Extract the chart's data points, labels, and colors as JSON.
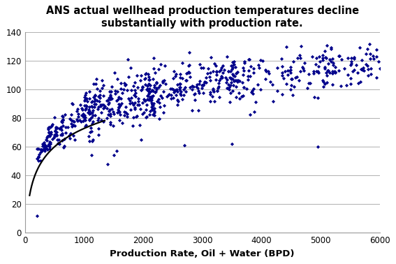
{
  "title": "ANS actual wellhead production temperatures decline\nsubstantially with production rate.",
  "xlabel": "Production Rate, Oil + Water (BPD)",
  "ylabel": "",
  "xlim": [
    0,
    6000
  ],
  "ylim": [
    0,
    140
  ],
  "xticks": [
    0,
    1000,
    2000,
    3000,
    4000,
    5000,
    6000
  ],
  "yticks": [
    0,
    20,
    40,
    60,
    80,
    100,
    120,
    140
  ],
  "dot_color": "#00008B",
  "curve_color": "#000000",
  "background_color": "#ffffff",
  "title_fontsize": 10.5,
  "axis_label_fontsize": 9.5,
  "tick_fontsize": 8.5,
  "seed": 7,
  "curve_x_start": 80,
  "curve_x_end": 1350
}
